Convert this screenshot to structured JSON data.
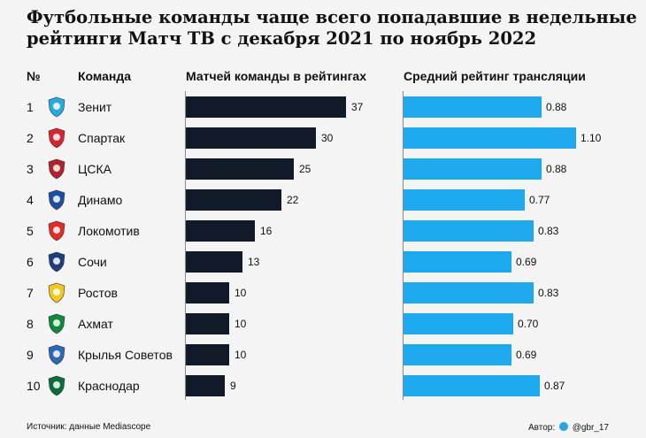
{
  "chart_data": {
    "type": "bar",
    "title": "Футбольные команды чаще всего попадавшие в недельные рейтинги Матч ТВ с декабря 2021 по ноябрь 2022",
    "headers": {
      "num": "№",
      "team": "Команда",
      "matches": "Матчей команды в рейтингах",
      "rating": "Средний рейтинг трансляции"
    },
    "categories": [
      "Зенит",
      "Спартак",
      "ЦСКА",
      "Динамо",
      "Локомотив",
      "Сочи",
      "Ростов",
      "Ахмат",
      "Крылья Советов",
      "Краснодар"
    ],
    "ranks": [
      "1",
      "2",
      "3",
      "4",
      "5",
      "6",
      "7",
      "8",
      "9",
      "10"
    ],
    "series": [
      {
        "name": "Матчей команды в рейтингах",
        "values": [
          37,
          30,
          25,
          22,
          16,
          13,
          10,
          10,
          10,
          9
        ],
        "labels": [
          "37",
          "30",
          "25",
          "22",
          "16",
          "13",
          "10",
          "10",
          "10",
          "9"
        ],
        "color": "#111a29"
      },
      {
        "name": "Средний рейтинг трансляции",
        "values": [
          0.88,
          1.1,
          0.88,
          0.77,
          0.83,
          0.69,
          0.83,
          0.7,
          0.69,
          0.87
        ],
        "labels": [
          "0.88",
          "1.10",
          "0.88",
          "0.77",
          "0.83",
          "0.69",
          "0.83",
          "0.70",
          "0.69",
          "0.87"
        ],
        "color": "#1ea8ee"
      }
    ],
    "logo_icons": [
      "zenit-icon",
      "spartak-icon",
      "cska-icon",
      "dinamo-icon",
      "lokomotiv-icon",
      "sochi-icon",
      "rostov-icon",
      "akhmat-icon",
      "krylya-sovetov-icon",
      "krasnodar-icon"
    ],
    "logo_colors": [
      "#27a9e1",
      "#d7242f",
      "#b5202d",
      "#1d4fa3",
      "#e02b27",
      "#1f3e7c",
      "#f2c81d",
      "#0f8a3d",
      "#2d68b2",
      "#0b6e3a"
    ]
  },
  "footer": {
    "source": "Источник: данные Mediascope",
    "author_prefix": "Автор:",
    "author_handle": "@gbr_17"
  }
}
